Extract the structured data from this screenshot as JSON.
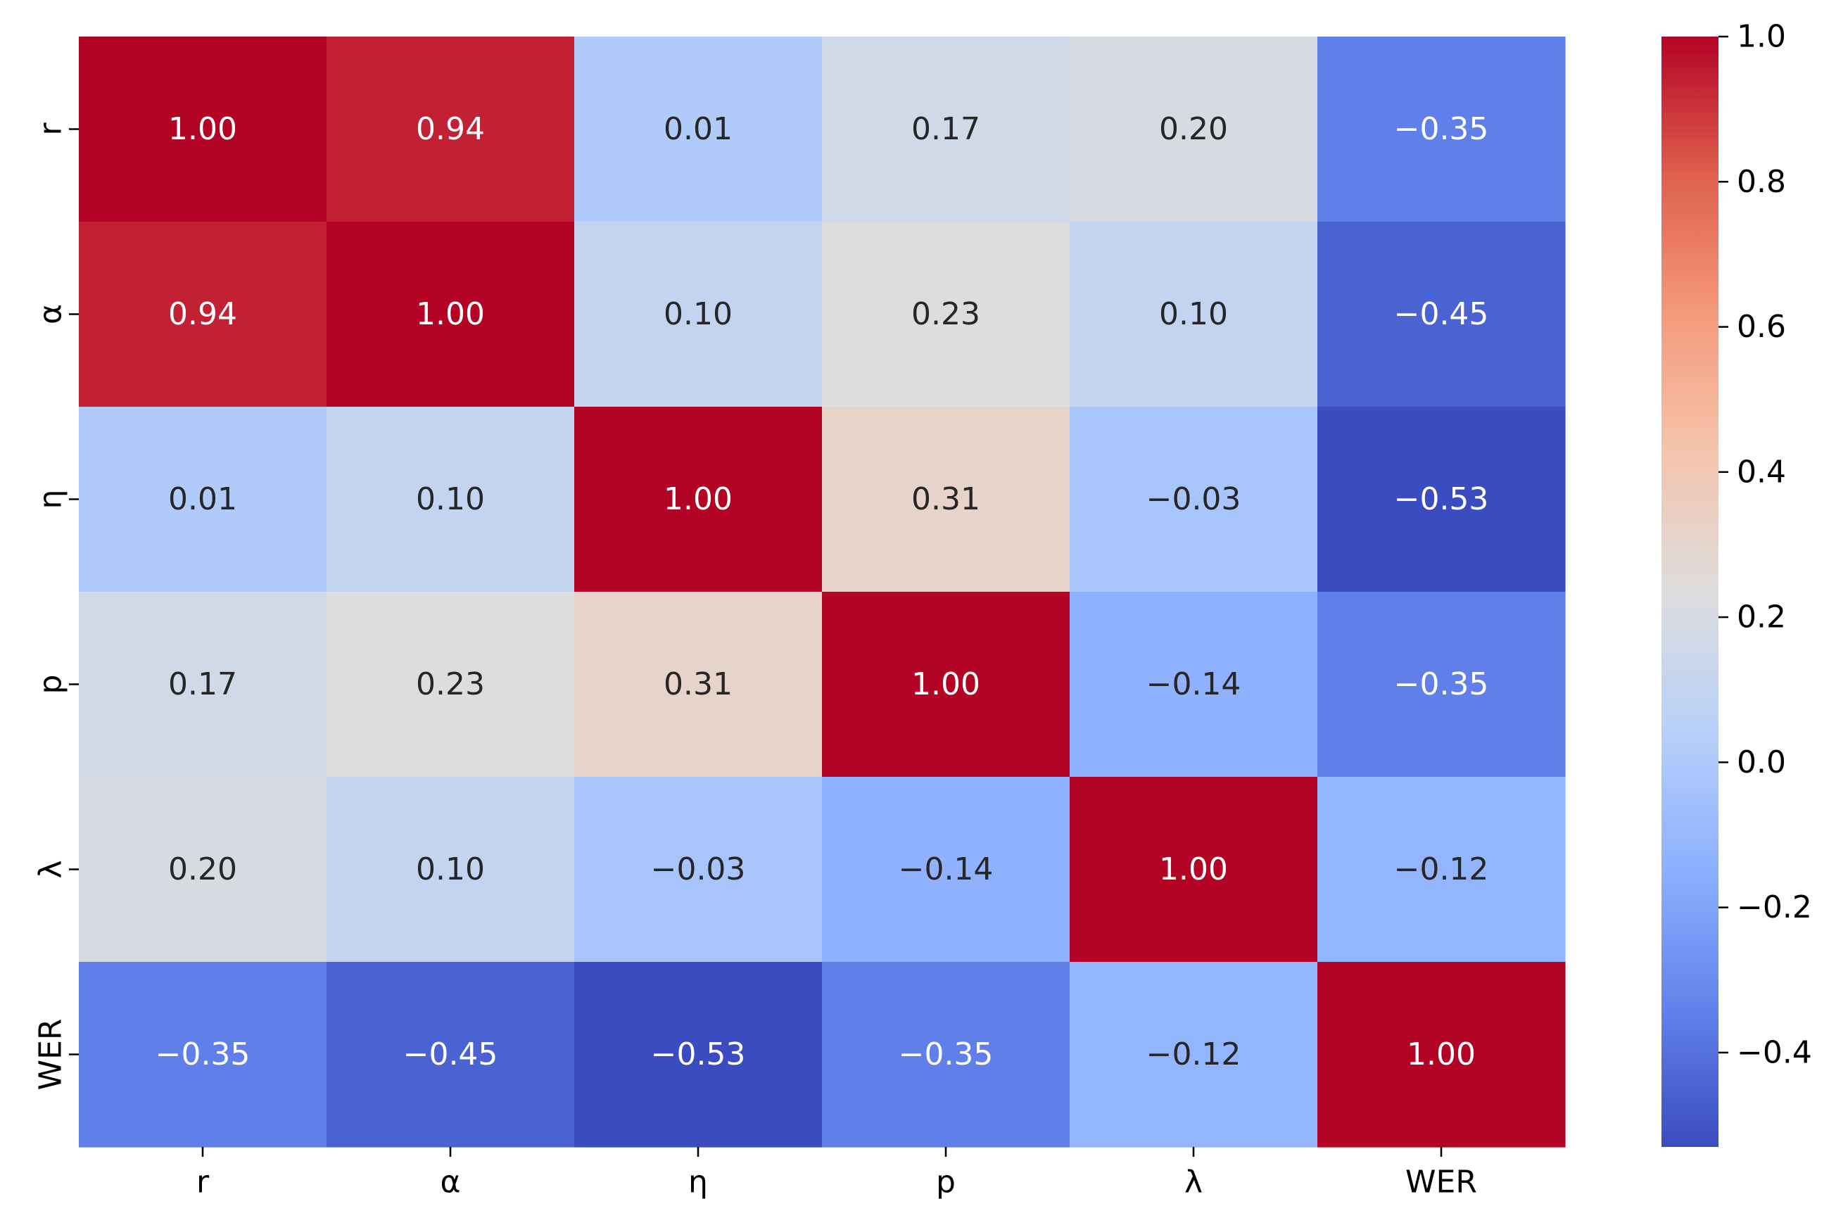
{
  "chart_data": {
    "type": "heatmap",
    "title": "",
    "xlabel": "",
    "ylabel": "",
    "row_labels": [
      "r",
      "α",
      "η",
      "p",
      "λ",
      "WER"
    ],
    "col_labels": [
      "r",
      "α",
      "η",
      "p",
      "λ",
      "WER"
    ],
    "values": [
      [
        1.0,
        0.94,
        0.01,
        0.17,
        0.2,
        -0.35
      ],
      [
        0.94,
        1.0,
        0.1,
        0.23,
        0.1,
        -0.45
      ],
      [
        0.01,
        0.1,
        1.0,
        0.31,
        -0.03,
        -0.53
      ],
      [
        0.17,
        0.23,
        0.31,
        1.0,
        -0.14,
        -0.35
      ],
      [
        0.2,
        0.1,
        -0.03,
        -0.14,
        1.0,
        -0.12
      ],
      [
        -0.35,
        -0.45,
        -0.53,
        -0.35,
        -0.12,
        1.0
      ]
    ],
    "cell_labels": [
      [
        "1.00",
        "0.94",
        "0.01",
        "0.17",
        "0.20",
        "−0.35"
      ],
      [
        "0.94",
        "1.00",
        "0.10",
        "0.23",
        "0.10",
        "−0.45"
      ],
      [
        "0.01",
        "0.10",
        "1.00",
        "0.31",
        "−0.03",
        "−0.53"
      ],
      [
        "0.17",
        "0.23",
        "0.31",
        "1.00",
        "−0.14",
        "−0.35"
      ],
      [
        "0.20",
        "0.10",
        "−0.03",
        "−0.14",
        "1.00",
        "−0.12"
      ],
      [
        "−0.35",
        "−0.45",
        "−0.53",
        "−0.35",
        "−0.12",
        "1.00"
      ]
    ],
    "colormap": "coolwarm",
    "colorbar": {
      "vmin": -0.53,
      "vmax": 1.0,
      "ticks": [
        1.0,
        0.8,
        0.6,
        0.4,
        0.2,
        0.0,
        -0.2,
        -0.4
      ],
      "tick_labels": [
        "1.0",
        "0.8",
        "0.6",
        "0.4",
        "0.2",
        "0.0",
        "−0.2",
        "−0.4"
      ]
    },
    "legend": "colorbar-right"
  }
}
